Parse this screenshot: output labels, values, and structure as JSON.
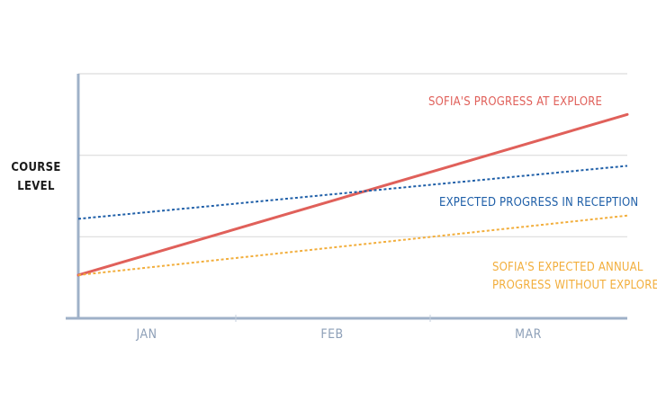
{
  "chart_data": {
    "type": "line",
    "title": "",
    "xlabel": "",
    "ylabel": [
      "COURSE",
      "LEVEL"
    ],
    "categories": [
      "JAN",
      "FEB",
      "MAR"
    ],
    "xlim": [
      0,
      3.5
    ],
    "ylim": [
      0,
      3
    ],
    "grid": true,
    "series": [
      {
        "name": "SOFIA'S PROGRESS AT EXPLORE",
        "label_lines": [
          "SOFIA'S PROGRESS AT EXPLORE"
        ],
        "style": "solid",
        "color": "#e0605a",
        "x": [
          0,
          3.5
        ],
        "y": [
          0.53,
          2.5
        ]
      },
      {
        "name": "EXPECTED PROGRESS IN RECEPTION",
        "label_lines": [
          "EXPECTED PROGRESS IN RECEPTION"
        ],
        "style": "dotted",
        "color": "#1f5fa8",
        "x": [
          0,
          3.5
        ],
        "y": [
          1.22,
          1.87
        ]
      },
      {
        "name": "SOFIA'S EXPECTED ANNUAL PROGRESS WITHOUT EXPLORE",
        "label_lines": [
          "SOFIA'S EXPECTED ANNUAL",
          "PROGRESS WITHOUT EXPLORE"
        ],
        "style": "dotted",
        "color": "#f2ae3c",
        "x": [
          0,
          3.5
        ],
        "y": [
          0.53,
          1.26
        ]
      }
    ]
  }
}
